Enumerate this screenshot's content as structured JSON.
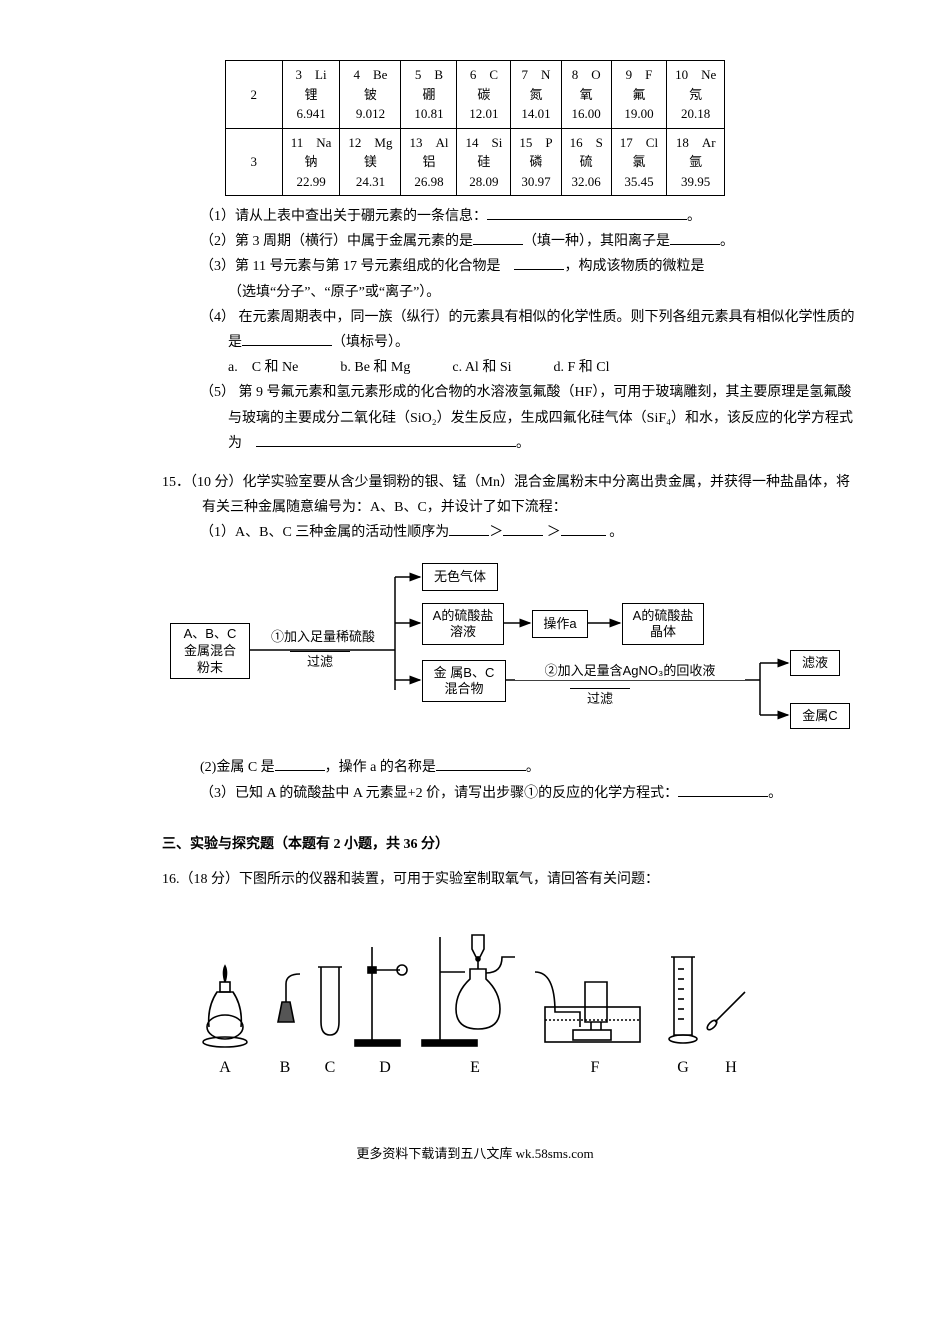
{
  "periodic_table": {
    "rows": [
      {
        "period": "2",
        "cells": [
          {
            "num": "3",
            "sym": "Li",
            "name": "锂",
            "mass": "6.941"
          },
          {
            "num": "4",
            "sym": "Be",
            "name": "铍",
            "mass": "9.012"
          },
          {
            "num": "5",
            "sym": "B",
            "name": "硼",
            "mass": "10.81"
          },
          {
            "num": "6",
            "sym": "C",
            "name": "碳",
            "mass": "12.01"
          },
          {
            "num": "7",
            "sym": "N",
            "name": "氮",
            "mass": "14.01"
          },
          {
            "num": "8",
            "sym": "O",
            "name": "氧",
            "mass": "16.00"
          },
          {
            "num": "9",
            "sym": "F",
            "name": "氟",
            "mass": "19.00"
          },
          {
            "num": "10",
            "sym": "Ne",
            "name": "氖",
            "mass": "20.18"
          }
        ]
      },
      {
        "period": "3",
        "cells": [
          {
            "num": "11",
            "sym": "Na",
            "name": "钠",
            "mass": "22.99"
          },
          {
            "num": "12",
            "sym": "Mg",
            "name": "镁",
            "mass": "24.31"
          },
          {
            "num": "13",
            "sym": "Al",
            "name": "铝",
            "mass": "26.98"
          },
          {
            "num": "14",
            "sym": "Si",
            "name": "硅",
            "mass": "28.09"
          },
          {
            "num": "15",
            "sym": "P",
            "name": "磷",
            "mass": "30.97"
          },
          {
            "num": "16",
            "sym": "S",
            "name": "硫",
            "mass": "32.06"
          },
          {
            "num": "17",
            "sym": "Cl",
            "name": "氯",
            "mass": "35.45"
          },
          {
            "num": "18",
            "sym": "Ar",
            "name": "氩",
            "mass": "39.95"
          }
        ]
      }
    ]
  },
  "q1": {
    "s1": "（1）请从上表中查出关于硼元素的一条信息：",
    "s1_end": "。",
    "s2a": "（2）第 3 周期（横行）中属于金属元素的是",
    "s2b": "（填一种），其阳离子是",
    "s2c": "。",
    "s3a": "（3）第 11 号元素与第 17 号元素组成的化合物是　",
    "s3b": "，构成该物质的微粒是",
    "s3c": "（选填“分子”、“原子”或“离子”）。",
    "s4a": "（4） 在元素周期表中，同一族（纵行）的元素具有相似的化学性质。则下列各组元素具有相似化学性质的是",
    "s4b": "（填标号）。",
    "s4_opts": "a.　C 和 Ne　　　b. Be 和 Mg　　　c. Al 和 Si　　　d. F 和 Cl",
    "s5a": "（5） 第 9 号氟元素和氢元素形成的化合物的水溶液氢氟酸（HF），可用于玻璃雕刻，其主要原理是氢氟酸与玻璃的主要成分二氧化硅（SiO₂）发生反应，生成四氟化硅气体（SiF₄）和水，该反应的化学方程式为　",
    "s5b": "。"
  },
  "q15": {
    "intro": "15．（10 分）化学实验室要从含少量铜粉的银、锰（Mn）混合金属粉末中分离出贵金属，并获得一种盐晶体，将有关三种金属随意编号为：A、B、C，并设计了如下流程：",
    "s1a": "（1）A、B、C 三种金属的活动性顺序为",
    "s1b": "＞",
    "s1c": " ＞",
    "s1d": " 。",
    "s2a": "(2)金属 C 是",
    "s2b": "，操作 a 的名称是",
    "s2c": "。",
    "s3a": "（3）已知 A 的硫酸盐中 A 元素显+2 价，请写出步骤①的反应的化学方程式：",
    "s3b": "。"
  },
  "flow": {
    "box_start": "A、B、C\n金属混合\n粉末",
    "step1_top": "①加入足量稀硫酸",
    "step1_bot": "过滤",
    "box_gas": "无色气体",
    "box_sol": "A的硫酸盐\n溶液",
    "op_a": "操作a",
    "box_crystal": "A的硫酸盐\n晶体",
    "box_bc": "金 属B、C\n混合物",
    "step2": "②加入足量含AgNO₃的回收液",
    "step2_bot": "过滤",
    "box_filtrate": "滤液",
    "box_c": "金属C"
  },
  "section3": {
    "title": "三、实验与探究题（本题有 2 小题，共 36 分）"
  },
  "q16": {
    "intro": "16.（18 分）下图所示的仪器和装置，可用于实验室制取氧气，请回答有关问题：",
    "labels": [
      "A",
      "B",
      "C",
      "D",
      "E",
      "F",
      "G",
      "H"
    ]
  },
  "footer": "更多资料下载请到五八文库 wk.58sms.com"
}
